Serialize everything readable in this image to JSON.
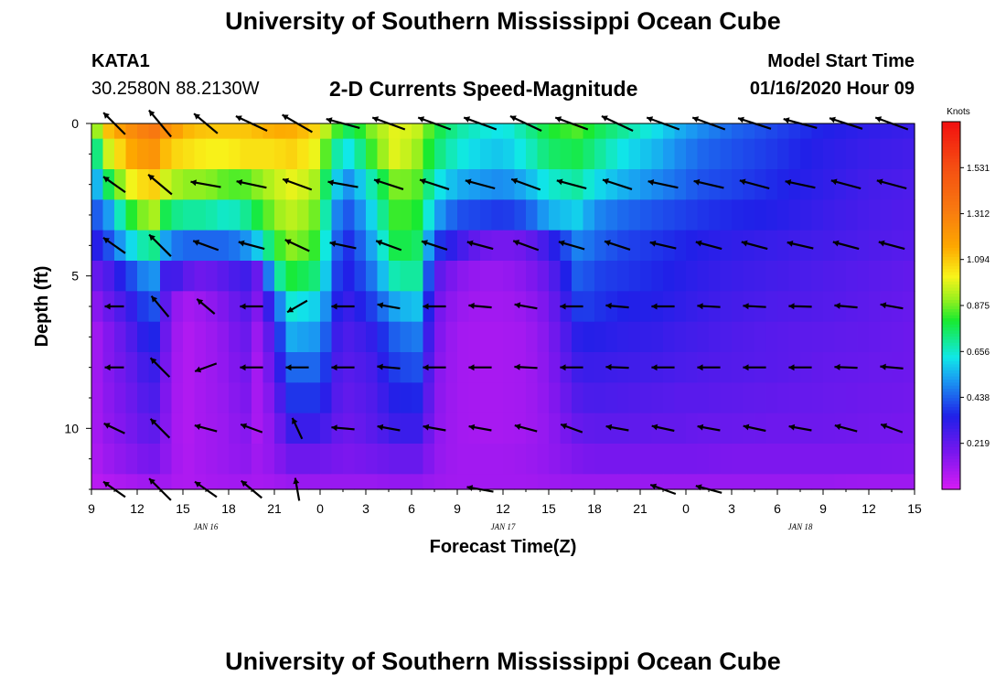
{
  "header": {
    "main_title": "University of Southern Mississippi Ocean Cube",
    "footer_title": "University of Southern Mississippi Ocean Cube",
    "station_id": "KATA1",
    "station_coords": "30.2580N 88.2130W",
    "start_label": "Model Start Time",
    "start_value": "01/16/2020 Hour 09"
  },
  "chart_data": {
    "type": "heatmap",
    "title": "2-D Currents Speed-Magnitude",
    "xlabel": "Forecast Time(Z)",
    "ylabel": "Depth (ft)",
    "x_range_hours": [
      0,
      54
    ],
    "x_ticks": [
      "9",
      "12",
      "15",
      "18",
      "21",
      "0",
      "3",
      "6",
      "9",
      "12",
      "15",
      "18",
      "21",
      "0",
      "3",
      "6",
      "9",
      "12",
      "15"
    ],
    "date_labels": [
      {
        "label": "JAN 16",
        "hour": 7.5
      },
      {
        "label": "JAN 17",
        "hour": 27
      },
      {
        "label": "JAN 18",
        "hour": 46.5
      }
    ],
    "y_range_ft": [
      0,
      12
    ],
    "y_ticks": [
      "0",
      "5",
      "10"
    ],
    "y_tick_values": [
      0,
      5,
      10
    ],
    "colorbar": {
      "title": "Knots",
      "range": [
        0,
        1.75
      ],
      "tick_labels": [
        "0.219",
        "0.438",
        "0.656",
        "0.875",
        "1.094",
        "1.312",
        "1.531"
      ],
      "tick_values": [
        0.219,
        0.438,
        0.656,
        0.875,
        1.094,
        1.312,
        1.531
      ]
    },
    "speed_keyframes": {
      "hours": [
        0,
        1,
        2.5,
        4,
        5,
        6,
        6.5,
        7.5,
        9,
        10,
        11,
        12,
        13,
        14.5,
        15,
        16,
        17,
        18.5,
        20,
        21.5,
        22.5,
        24,
        25.5,
        27,
        28.5,
        30,
        32,
        33,
        35,
        37,
        38.5,
        40,
        42,
        45,
        48,
        51,
        54
      ],
      "depth_rows_ft": [
        0,
        1,
        2,
        3,
        4,
        5,
        6,
        7,
        8,
        9,
        10,
        11,
        12
      ],
      "speeds_knots": [
        [
          0.8,
          1.1,
          1.25,
          1.35,
          1.25,
          1.15,
          1.12,
          1.1,
          1.1,
          1.1,
          1.12,
          1.15,
          1.15,
          1.1,
          1.0,
          0.85,
          0.75,
          0.9,
          1.0,
          0.95,
          0.8,
          0.7,
          0.65,
          0.62,
          0.7,
          0.8,
          0.85,
          0.78,
          0.7,
          0.62,
          0.55,
          0.5,
          0.45,
          0.4,
          0.35,
          0.32,
          0.3
        ],
        [
          0.6,
          0.95,
          1.15,
          1.25,
          1.1,
          1.05,
          1.05,
          1.02,
          1.02,
          1.05,
          1.05,
          1.05,
          1.08,
          1.02,
          0.95,
          0.7,
          0.62,
          0.85,
          1.0,
          0.9,
          0.75,
          0.65,
          0.6,
          0.58,
          0.65,
          0.75,
          0.78,
          0.72,
          0.62,
          0.56,
          0.5,
          0.45,
          0.42,
          0.38,
          0.33,
          0.3,
          0.28
        ],
        [
          0.45,
          0.75,
          1.0,
          1.1,
          0.95,
          0.9,
          0.9,
          0.9,
          0.85,
          0.85,
          0.9,
          0.95,
          1.0,
          0.95,
          0.85,
          0.6,
          0.5,
          0.7,
          0.9,
          0.85,
          0.65,
          0.55,
          0.52,
          0.5,
          0.55,
          0.65,
          0.7,
          0.62,
          0.55,
          0.5,
          0.46,
          0.42,
          0.4,
          0.36,
          0.32,
          0.28,
          0.26
        ],
        [
          0.4,
          0.5,
          0.8,
          0.95,
          0.75,
          0.7,
          0.7,
          0.7,
          0.65,
          0.7,
          0.8,
          0.9,
          0.95,
          0.9,
          0.8,
          0.5,
          0.42,
          0.62,
          0.85,
          0.8,
          0.55,
          0.42,
          0.4,
          0.38,
          0.42,
          0.55,
          0.6,
          0.5,
          0.45,
          0.42,
          0.4,
          0.38,
          0.36,
          0.34,
          0.3,
          0.27,
          0.25
        ],
        [
          0.3,
          0.4,
          0.6,
          0.75,
          0.5,
          0.45,
          0.45,
          0.45,
          0.45,
          0.5,
          0.6,
          0.8,
          0.9,
          0.85,
          0.75,
          0.45,
          0.36,
          0.55,
          0.8,
          0.75,
          0.4,
          0.3,
          0.2,
          0.18,
          0.2,
          0.3,
          0.5,
          0.45,
          0.4,
          0.38,
          0.36,
          0.34,
          0.32,
          0.3,
          0.28,
          0.26,
          0.24
        ],
        [
          0.2,
          0.25,
          0.4,
          0.55,
          0.25,
          0.3,
          0.2,
          0.2,
          0.25,
          0.3,
          0.2,
          0.65,
          0.8,
          0.75,
          0.7,
          0.4,
          0.34,
          0.48,
          0.7,
          0.7,
          0.25,
          0.15,
          0.12,
          0.12,
          0.15,
          0.22,
          0.45,
          0.4,
          0.38,
          0.36,
          0.34,
          0.32,
          0.3,
          0.28,
          0.26,
          0.24,
          0.22
        ],
        [
          0.12,
          0.2,
          0.3,
          0.45,
          0.2,
          0.08,
          0.1,
          0.12,
          0.18,
          0.25,
          0.15,
          0.4,
          0.65,
          0.6,
          0.6,
          0.35,
          0.3,
          0.4,
          0.55,
          0.58,
          0.2,
          0.12,
          0.1,
          0.1,
          0.12,
          0.18,
          0.4,
          0.38,
          0.35,
          0.34,
          0.32,
          0.3,
          0.28,
          0.26,
          0.25,
          0.23,
          0.21
        ],
        [
          0.08,
          0.15,
          0.25,
          0.38,
          0.18,
          0.06,
          0.08,
          0.1,
          0.15,
          0.22,
          0.1,
          0.3,
          0.55,
          0.52,
          0.52,
          0.3,
          0.26,
          0.32,
          0.45,
          0.48,
          0.18,
          0.1,
          0.09,
          0.09,
          0.1,
          0.16,
          0.34,
          0.34,
          0.32,
          0.31,
          0.29,
          0.28,
          0.26,
          0.24,
          0.23,
          0.22,
          0.2
        ],
        [
          0.08,
          0.15,
          0.22,
          0.32,
          0.16,
          0.06,
          0.08,
          0.1,
          0.14,
          0.2,
          0.08,
          0.25,
          0.45,
          0.45,
          0.45,
          0.27,
          0.24,
          0.28,
          0.4,
          0.42,
          0.16,
          0.1,
          0.09,
          0.09,
          0.1,
          0.15,
          0.3,
          0.3,
          0.29,
          0.28,
          0.27,
          0.26,
          0.25,
          0.24,
          0.22,
          0.21,
          0.2
        ],
        [
          0.08,
          0.14,
          0.2,
          0.28,
          0.15,
          0.06,
          0.08,
          0.1,
          0.13,
          0.18,
          0.08,
          0.2,
          0.38,
          0.38,
          0.38,
          0.25,
          0.22,
          0.26,
          0.35,
          0.36,
          0.15,
          0.1,
          0.09,
          0.09,
          0.1,
          0.14,
          0.26,
          0.27,
          0.26,
          0.25,
          0.24,
          0.24,
          0.23,
          0.22,
          0.21,
          0.2,
          0.19
        ],
        [
          0.08,
          0.13,
          0.18,
          0.24,
          0.14,
          0.06,
          0.08,
          0.1,
          0.12,
          0.16,
          0.08,
          0.16,
          0.3,
          0.3,
          0.3,
          0.22,
          0.2,
          0.24,
          0.3,
          0.3,
          0.14,
          0.1,
          0.09,
          0.09,
          0.1,
          0.13,
          0.22,
          0.23,
          0.23,
          0.22,
          0.22,
          0.21,
          0.21,
          0.2,
          0.2,
          0.19,
          0.18
        ],
        [
          0.07,
          0.11,
          0.15,
          0.19,
          0.13,
          0.07,
          0.08,
          0.1,
          0.12,
          0.14,
          0.1,
          0.14,
          0.2,
          0.2,
          0.2,
          0.18,
          0.17,
          0.19,
          0.21,
          0.21,
          0.13,
          0.1,
          0.1,
          0.1,
          0.11,
          0.13,
          0.17,
          0.18,
          0.18,
          0.18,
          0.18,
          0.18,
          0.17,
          0.17,
          0.17,
          0.17,
          0.16
        ],
        [
          0.05,
          0.07,
          0.09,
          0.11,
          0.1,
          0.07,
          0.08,
          0.09,
          0.1,
          0.1,
          0.09,
          0.1,
          0.12,
          0.12,
          0.12,
          0.12,
          0.12,
          0.12,
          0.13,
          0.13,
          0.11,
          0.1,
          0.1,
          0.1,
          0.1,
          0.11,
          0.12,
          0.12,
          0.12,
          0.12,
          0.12,
          0.12,
          0.12,
          0.12,
          0.12,
          0.11,
          0.11
        ]
      ]
    },
    "vectors": {
      "hours": [
        1.5,
        4.5,
        7.5,
        10.5,
        13.5,
        16.5,
        19.5,
        22.5,
        25.5,
        28.5,
        31.5,
        34.5,
        37.5,
        40.5,
        43.5,
        46.5,
        49.5,
        52.5
      ],
      "depth_rows_ft": [
        0,
        2,
        4,
        6,
        8,
        10,
        12
      ],
      "direction_deg": [
        [
          225,
          230,
          220,
          205,
          210,
          195,
          200,
          200,
          200,
          205,
          200,
          205,
          200,
          200,
          198,
          195,
          198,
          200
        ],
        [
          215,
          220,
          190,
          192,
          200,
          190,
          198,
          198,
          195,
          200,
          195,
          198,
          192,
          193,
          195,
          192,
          195,
          195
        ],
        [
          215,
          225,
          200,
          195,
          205,
          192,
          200,
          198,
          195,
          200,
          196,
          198,
          193,
          195,
          195,
          193,
          195,
          195
        ],
        [
          180,
          230,
          220,
          180,
          150,
          180,
          190,
          180,
          185,
          190,
          180,
          185,
          180,
          183,
          183,
          182,
          185,
          190
        ],
        [
          180,
          225,
          160,
          180,
          180,
          180,
          185,
          180,
          180,
          183,
          180,
          182,
          180,
          180,
          180,
          180,
          182,
          185
        ],
        [
          205,
          225,
          195,
          200,
          245,
          185,
          190,
          190,
          190,
          195,
          200,
          190,
          192,
          190,
          192,
          190,
          195,
          200
        ],
        [
          215,
          225,
          215,
          220,
          260,
          190,
          190,
          190,
          190,
          190,
          200,
          190,
          200,
          195,
          190,
          190,
          190,
          190
        ]
      ],
      "length_scale": [
        [
          0.8,
          0.9,
          0.8,
          0.9,
          0.9,
          0.9,
          0.9,
          0.9,
          0.9,
          0.9,
          0.9,
          0.9,
          0.9,
          0.9,
          0.9,
          0.9,
          0.9,
          0.9
        ],
        [
          0.7,
          0.8,
          0.8,
          0.8,
          0.8,
          0.8,
          0.8,
          0.8,
          0.8,
          0.8,
          0.8,
          0.8,
          0.8,
          0.8,
          0.8,
          0.8,
          0.8,
          0.8
        ],
        [
          0.7,
          0.8,
          0.7,
          0.7,
          0.7,
          0.7,
          0.7,
          0.7,
          0.7,
          0.7,
          0.7,
          0.7,
          0.7,
          0.7,
          0.7,
          0.7,
          0.7,
          0.7
        ],
        [
          0.5,
          0.7,
          0.6,
          0.6,
          0.6,
          0.6,
          0.6,
          0.6,
          0.6,
          0.6,
          0.6,
          0.6,
          0.6,
          0.6,
          0.6,
          0.6,
          0.6,
          0.6
        ],
        [
          0.5,
          0.7,
          0.6,
          0.6,
          0.6,
          0.6,
          0.6,
          0.6,
          0.6,
          0.6,
          0.6,
          0.6,
          0.6,
          0.6,
          0.6,
          0.6,
          0.6,
          0.6
        ],
        [
          0.6,
          0.7,
          0.6,
          0.6,
          0.6,
          0.6,
          0.6,
          0.6,
          0.6,
          0.6,
          0.6,
          0.6,
          0.6,
          0.6,
          0.6,
          0.6,
          0.6,
          0.6
        ],
        [
          0.7,
          0.8,
          0.7,
          0.7,
          0.6,
          0.0,
          0.0,
          0.0,
          0.7,
          0.0,
          0.0,
          0.0,
          0.7,
          0.7,
          0.0,
          0.0,
          0.0,
          0.0
        ]
      ]
    }
  }
}
